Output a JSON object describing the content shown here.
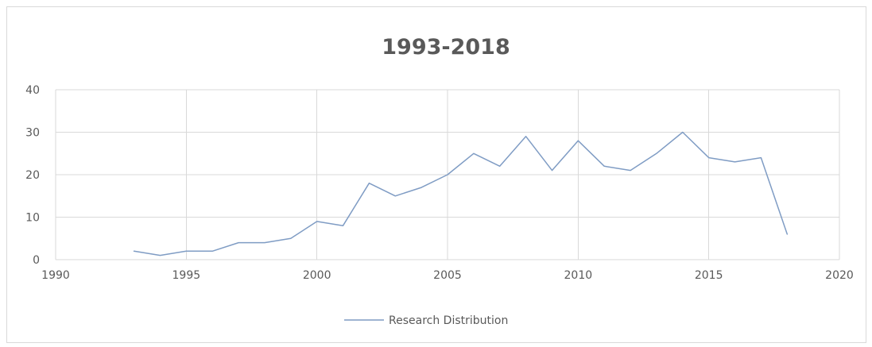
{
  "chart_data": {
    "type": "line",
    "title": "1993-2018",
    "xlabel": "",
    "ylabel": "",
    "xlim": [
      1990,
      2020
    ],
    "ylim": [
      0,
      40
    ],
    "x_ticks": [
      1990,
      1995,
      2000,
      2005,
      2010,
      2015,
      2020
    ],
    "y_ticks": [
      0,
      10,
      20,
      30,
      40
    ],
    "grid": true,
    "legend_position": "bottom",
    "series": [
      {
        "name": "Research Distribution",
        "color": "#7f9cc4",
        "x": [
          1993,
          1994,
          1995,
          1996,
          1997,
          1998,
          1999,
          2000,
          2001,
          2002,
          2003,
          2004,
          2005,
          2006,
          2007,
          2008,
          2009,
          2010,
          2011,
          2012,
          2013,
          2014,
          2015,
          2016,
          2017,
          2018
        ],
        "y": [
          2,
          1,
          2,
          2,
          4,
          4,
          5,
          9,
          8,
          18,
          15,
          17,
          20,
          25,
          22,
          29,
          21,
          28,
          22,
          21,
          25,
          30,
          24,
          23,
          24,
          6
        ]
      }
    ]
  }
}
